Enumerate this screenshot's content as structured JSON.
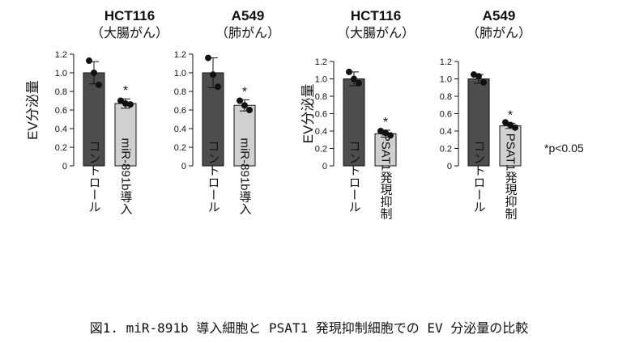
{
  "caption": "図1. miR-891b 導入細胞と PSAT1 発現抑制細胞での EV 分泌量の比較",
  "significance_note": "*p<0.05",
  "colors": {
    "control": "#4d4d4d",
    "treatment": "#d0d0d0",
    "dot": "#111111"
  },
  "chart_data": [
    {
      "type": "bar",
      "title": "HCT116",
      "subtitle": "（大腸がん）",
      "ylabel": "EV分泌量",
      "ylim": [
        0,
        1.2
      ],
      "yticks": [
        "0",
        "0.2",
        "0.4",
        "0.6",
        "0.8",
        "1.0",
        "1.2"
      ],
      "categories": [
        "コントロール",
        "miR-891b導入"
      ],
      "values": [
        1.0,
        0.67
      ],
      "errors": [
        0.12,
        0.05
      ],
      "points": [
        [
          1.13,
          1.0,
          0.87
        ],
        [
          0.7,
          0.67,
          0.66
        ]
      ],
      "significance": [
        "",
        "*"
      ]
    },
    {
      "type": "bar",
      "title": "A549",
      "subtitle": "（肺がん）",
      "ylabel": "",
      "ylim": [
        0,
        1.2
      ],
      "yticks": [
        "0",
        "0.2",
        "0.4",
        "0.6",
        "0.8",
        "1.0",
        "1.2"
      ],
      "categories": [
        "コントロール",
        "miR-891b導入"
      ],
      "values": [
        1.0,
        0.65
      ],
      "errors": [
        0.16,
        0.06
      ],
      "points": [
        [
          1.16,
          0.98,
          0.85
        ],
        [
          0.7,
          0.65,
          0.6
        ]
      ],
      "significance": [
        "",
        "*"
      ]
    },
    {
      "type": "bar",
      "title": "HCT116",
      "subtitle": "（大腸がん）",
      "ylabel": "EV分泌量",
      "ylim": [
        0,
        1.2
      ],
      "yticks": [
        "0",
        "0.2",
        "0.4",
        "0.6",
        "0.8",
        "1.0",
        "1.2"
      ],
      "categories": [
        "コントロール",
        "PSAT1発現抑制"
      ],
      "values": [
        1.0,
        0.37
      ],
      "errors": [
        0.08,
        0.04
      ],
      "points": [
        [
          1.08,
          1.0,
          0.95
        ],
        [
          0.4,
          0.38,
          0.35
        ]
      ],
      "significance": [
        "",
        "*"
      ]
    },
    {
      "type": "bar",
      "title": "A549",
      "subtitle": "（肺がん）",
      "ylabel": "",
      "ylim": [
        0,
        1.2
      ],
      "yticks": [
        "0",
        "0.2",
        "0.4",
        "0.6",
        "0.8",
        "1.0",
        "1.2"
      ],
      "categories": [
        "コントロール",
        "PSAT1発現抑制"
      ],
      "values": [
        1.0,
        0.46
      ],
      "errors": [
        0.05,
        0.03
      ],
      "points": [
        [
          1.05,
          1.03,
          0.96
        ],
        [
          0.5,
          0.47,
          0.44
        ]
      ],
      "significance": [
        "",
        "*"
      ]
    }
  ]
}
